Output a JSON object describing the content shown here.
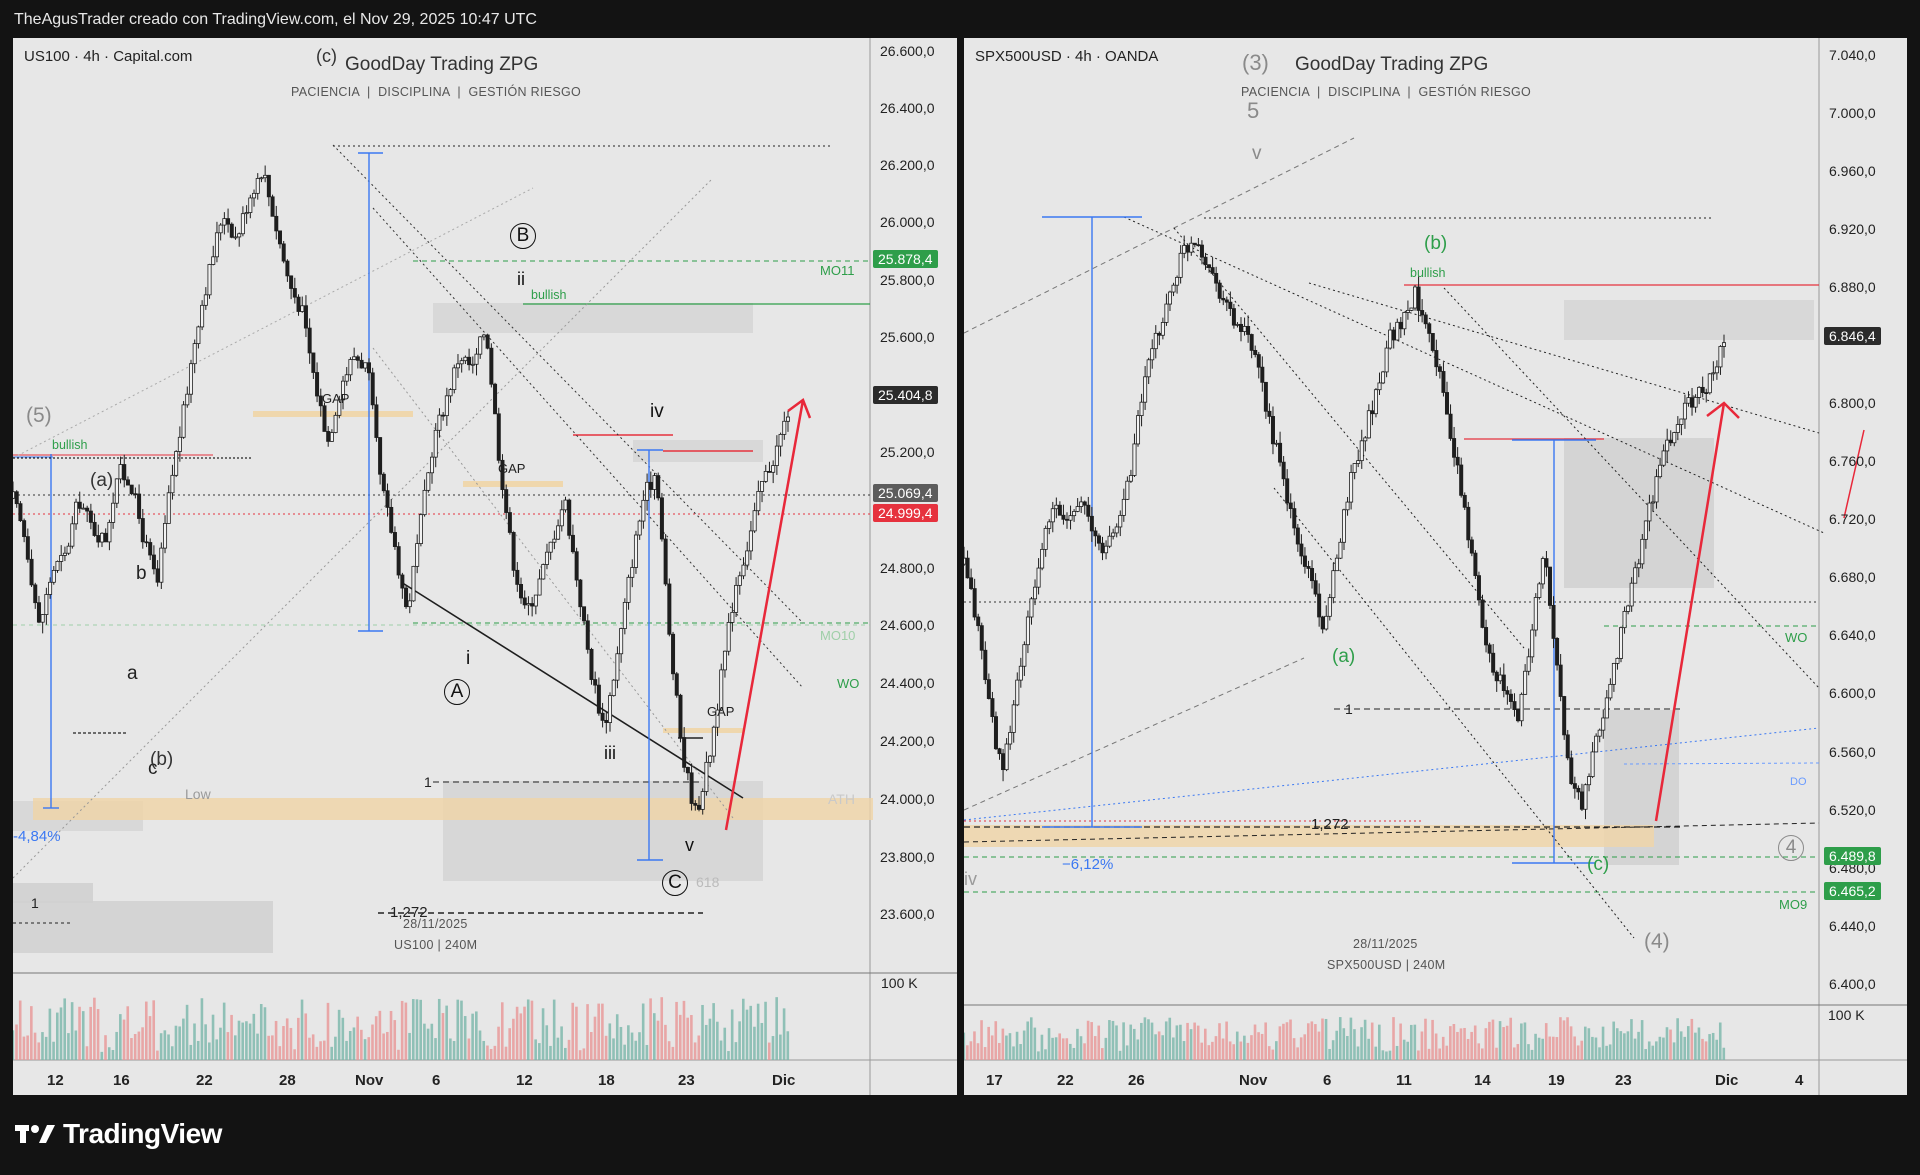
{
  "header": {
    "title": "TheAgusTrader creado con TradingView.com, el Nov 29, 2025 10:47 UTC"
  },
  "footer": {
    "brand": "TradingView"
  },
  "colors": {
    "bg": "#131313",
    "chart_bg": "#e6e6e6",
    "up": "#1f1f1f",
    "green_tag": "#2e9e4a",
    "red_tag": "#e6323e",
    "dark_tag": "#2b2b2b",
    "grey_tag": "#5c5c5c",
    "blue": "#3b78f2",
    "red_arrow": "#e8283a"
  },
  "left": {
    "symbol": "US100 · 4h · Capital.com",
    "watermark_title": "GoodDay Trading ZPG",
    "watermark_sub": "PACIENCIA  |  DISCIPLINA  |  GESTIÓN RIESGO",
    "watermark_date": "28/11/2025",
    "watermark_symbol": "US100 | 240M",
    "volume_label": "100 K",
    "price_ticks": [
      "26.600,0",
      "26.400,0",
      "26.200,0",
      "26.000,0",
      "25.800,0",
      "25.600,0",
      "25.200,0",
      "24.800,0",
      "24.600,0",
      "24.400,0",
      "24.200,0",
      "24.000,0",
      "23.800,0",
      "23.600,0"
    ],
    "time_ticks": [
      "12",
      "16",
      "22",
      "28",
      "Nov",
      "6",
      "12",
      "18",
      "23",
      "Dic"
    ],
    "price_tags": {
      "mo11": "25.878,4",
      "last": "25.404,8",
      "grey": "25.069,4",
      "red": "24.999,4"
    },
    "labels": {
      "c_top": "(c)",
      "five": "(5)",
      "bullish_left": "bullish",
      "a_paren": "(a)",
      "b_small": "b",
      "a_small": "a",
      "c_small": "c",
      "b_paren": "(b)",
      "low": "Low",
      "pct": "-4,84%",
      "one_left": "1",
      "gap1": "GAP",
      "gap2": "GAP",
      "gap3": "GAP",
      "B_circ": "B",
      "ii": "ii",
      "bullish_mid": "bullish",
      "iv": "iv",
      "i": "i",
      "A_circ": "A",
      "iii": "iii",
      "v": "v",
      "C_circ": "C",
      "one_mid": "1",
      "fib1272": "1,272",
      "fib618": "618",
      "mo11": "MO11",
      "mo10": "MO10",
      "wo": "WO",
      "ath": "ATH"
    }
  },
  "right": {
    "symbol": "SPX500USD · 4h · OANDA",
    "watermark_title": "GoodDay Trading ZPG",
    "watermark_sub": "PACIENCIA  |  DISCIPLINA  |  GESTIÓN RIESGO",
    "watermark_date": "28/11/2025",
    "watermark_symbol": "SPX500USD | 240M",
    "volume_label": "100 K",
    "price_ticks": [
      "7.040,0",
      "7.000,0",
      "6.960,0",
      "6.920,0",
      "6.880,0",
      "6.800,0",
      "6.760,0",
      "6.720,0",
      "6.680,0",
      "6.640,0",
      "6.600,0",
      "6.560,0",
      "6.520,0",
      "6.480,0",
      "6.440,0",
      "6.400,0"
    ],
    "time_ticks": [
      "17",
      "22",
      "26",
      "Nov",
      "6",
      "11",
      "14",
      "19",
      "23",
      "Dic",
      "4"
    ],
    "price_tags": {
      "last": "6.846,4",
      "green1": "6.489,8",
      "green2": "6.465,2"
    },
    "labels": {
      "three": "(3)",
      "five": "5",
      "v": "v",
      "b_green": "(b)",
      "bullish": "bullish",
      "a_green": "(a)",
      "one": "1",
      "fib1272": "1,272",
      "pct": "−6,12%",
      "c_green": "(c)",
      "four_paren": "(4)",
      "four_circ": "4",
      "iv": "iv",
      "wo": "WO",
      "do": "DO",
      "mo9": "MO9"
    }
  },
  "chart_data": [
    {
      "type": "candlestick",
      "title": "US100 · 4h · Capital.com",
      "x_ticks": [
        "12",
        "16",
        "22",
        "28",
        "Nov",
        "6",
        "12",
        "18",
        "23",
        "Dic"
      ],
      "ylim": [
        23450,
        26700
      ],
      "last_price": 25404.8,
      "levels": [
        {
          "name": "MO11",
          "value": 25878.4
        },
        {
          "name": "close",
          "value": 25069.4
        },
        {
          "name": "red",
          "value": 24999.4
        },
        {
          "name": "MO10",
          "value": 24600
        },
        {
          "name": "WO",
          "value": 24460
        },
        {
          "name": "ATH",
          "value": 23960
        },
        {
          "name": "1,272",
          "value": 23610
        }
      ],
      "close_path": [
        25100,
        24950,
        24650,
        24850,
        24900,
        25100,
        25000,
        24950,
        25200,
        25150,
        24950,
        24800,
        25150,
        25400,
        25700,
        25900,
        26100,
        26000,
        26150,
        26250,
        26050,
        25850,
        25750,
        25500,
        25300,
        25500,
        25600,
        25550,
        25150,
        24950,
        24700,
        25000,
        25300,
        25450,
        25600,
        25550,
        25700,
        25250,
        24900,
        24700,
        24800,
        24950,
        25100,
        24800,
        24500,
        24300,
        24550,
        24850,
        25100,
        25200,
        24600,
        24200,
        24000,
        24200,
        24500,
        24800,
        24950,
        25150,
        25250,
        25400
      ]
    },
    {
      "type": "candlestick",
      "title": "SPX500USD · 4h · OANDA",
      "x_ticks": [
        "17",
        "22",
        "26",
        "Nov",
        "6",
        "11",
        "14",
        "19",
        "23",
        "Dic",
        "4"
      ],
      "ylim": [
        6380,
        7060
      ],
      "last_price": 6846.4,
      "levels": [
        {
          "name": "red",
          "value": 6882
        },
        {
          "name": "WO",
          "value": 6648
        },
        {
          "name": "DO",
          "value": 6547
        },
        {
          "name": "1",
          "value": 6592
        },
        {
          "name": "1,272",
          "value": 6511
        },
        {
          "name": "green1",
          "value": 6489.8
        },
        {
          "name": "MO9",
          "value": 6465.2
        }
      ],
      "close_path": [
        6690,
        6650,
        6590,
        6540,
        6600,
        6650,
        6700,
        6730,
        6720,
        6740,
        6710,
        6700,
        6720,
        6760,
        6820,
        6850,
        6880,
        6910,
        6920,
        6900,
        6880,
        6860,
        6850,
        6820,
        6780,
        6740,
        6700,
        6680,
        6640,
        6700,
        6750,
        6780,
        6810,
        6850,
        6860,
        6880,
        6860,
        6820,
        6770,
        6720,
        6660,
        6620,
        6600,
        6580,
        6640,
        6700,
        6620,
        6540,
        6520,
        6560,
        6600,
        6640,
        6680,
        6720,
        6760,
        6780,
        6800,
        6810,
        6820,
        6846
      ]
    }
  ]
}
